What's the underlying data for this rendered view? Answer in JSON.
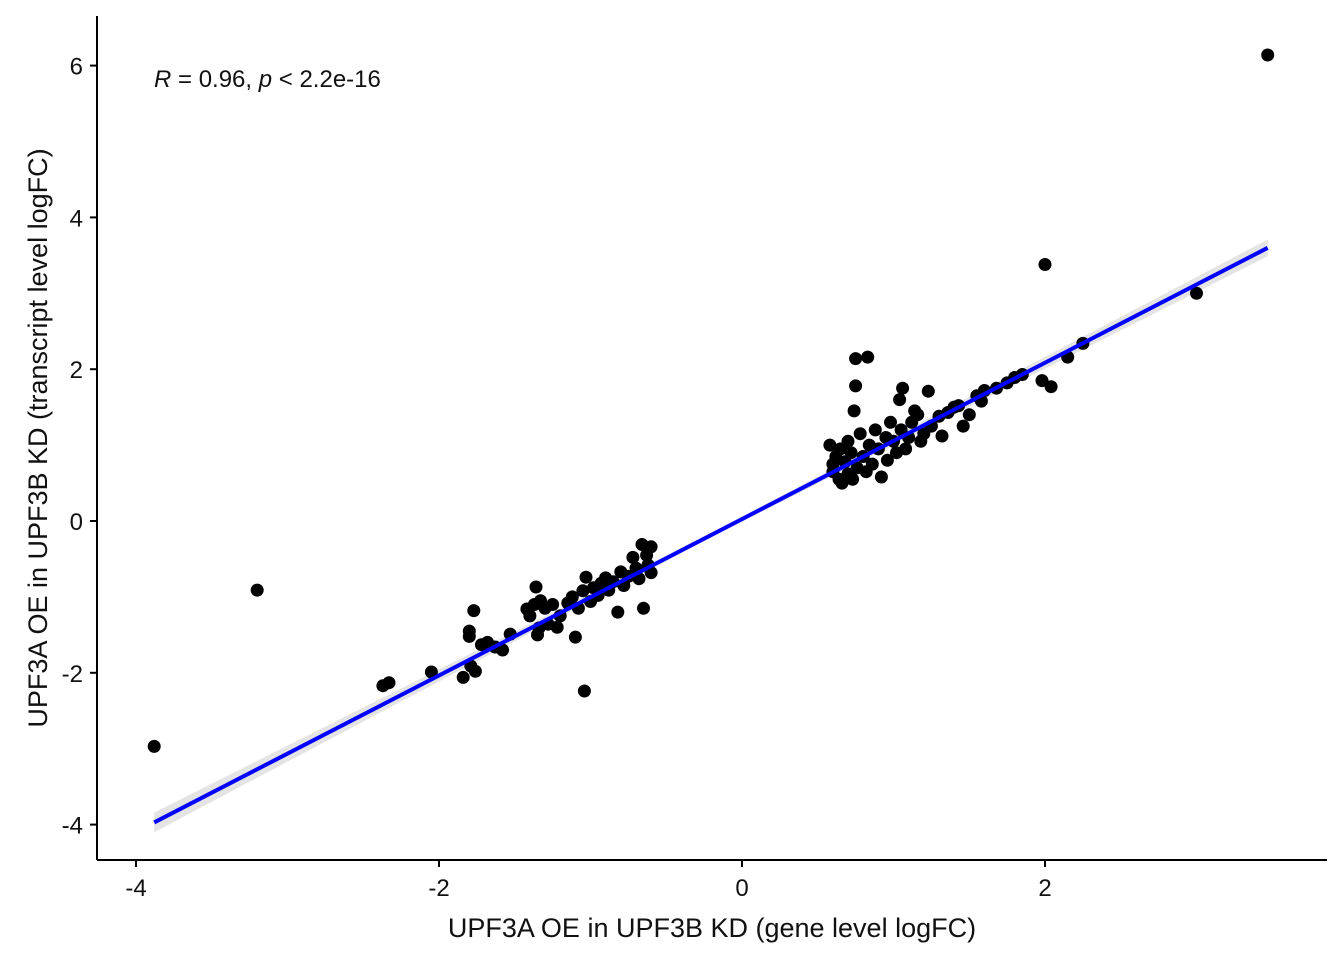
{
  "chart_data": {
    "type": "scatter",
    "title": "",
    "xlabel": "UPF3A OE in UPF3B KD (gene level logFC)",
    "ylabel": "UPF3A OE in UPF3B KD (transcript level logFC)",
    "xlim": [
      -4.15,
      3.85
    ],
    "ylim": [
      -4.5,
      6.65
    ],
    "x_ticks": [
      -4,
      -2,
      0,
      2
    ],
    "x_tick_labels": [
      "-4",
      "-2",
      "0",
      "2"
    ],
    "y_ticks": [
      -4,
      -2,
      0,
      2,
      4,
      6
    ],
    "y_tick_labels": [
      "-4",
      "-2",
      "0",
      "2",
      "4",
      "6"
    ],
    "grid": false,
    "annotation": {
      "r_symbol": "R",
      "r_text": " = 0.96, ",
      "p_symbol": "p",
      "p_text": " < 2.2e-16"
    },
    "point_color": "#000000",
    "regression": {
      "color": "#0000ff",
      "ci_color": "#d9d9d9",
      "x_range": [
        -3.88,
        3.47
      ],
      "intercept": 0.025,
      "slope": 1.03
    },
    "points": [
      [
        -3.88,
        -2.97
      ],
      [
        -3.2,
        -0.91
      ],
      [
        -2.37,
        -2.17
      ],
      [
        -2.33,
        -2.13
      ],
      [
        -2.05,
        -1.99
      ],
      [
        -1.84,
        -2.06
      ],
      [
        -1.79,
        -1.91
      ],
      [
        -1.77,
        -1.18
      ],
      [
        -1.8,
        -1.45
      ],
      [
        -1.8,
        -1.52
      ],
      [
        -1.76,
        -1.98
      ],
      [
        -1.72,
        -1.63
      ],
      [
        -1.68,
        -1.6
      ],
      [
        -1.63,
        -1.66
      ],
      [
        -1.58,
        -1.7
      ],
      [
        -1.53,
        -1.49
      ],
      [
        -1.42,
        -1.16
      ],
      [
        -1.4,
        -1.25
      ],
      [
        -1.37,
        -1.1
      ],
      [
        -1.36,
        -0.87
      ],
      [
        -1.34,
        -1.41
      ],
      [
        -1.35,
        -1.5
      ],
      [
        -1.33,
        -1.05
      ],
      [
        -1.3,
        -1.15
      ],
      [
        -1.28,
        -1.36
      ],
      [
        -1.25,
        -1.1
      ],
      [
        -1.22,
        -1.4
      ],
      [
        -1.2,
        -1.25
      ],
      [
        -1.15,
        -1.08
      ],
      [
        -1.12,
        -1.0
      ],
      [
        -1.1,
        -1.53
      ],
      [
        -1.08,
        -1.15
      ],
      [
        -1.05,
        -0.92
      ],
      [
        -1.03,
        -0.74
      ],
      [
        -1.0,
        -1.06
      ],
      [
        -1.04,
        -2.24
      ],
      [
        -0.98,
        -0.88
      ],
      [
        -0.95,
        -0.98
      ],
      [
        -0.93,
        -0.82
      ],
      [
        -0.9,
        -0.75
      ],
      [
        -0.88,
        -0.91
      ],
      [
        -0.85,
        -0.8
      ],
      [
        -0.82,
        -1.2
      ],
      [
        -0.8,
        -0.67
      ],
      [
        -0.78,
        -0.85
      ],
      [
        -0.75,
        -0.73
      ],
      [
        -0.72,
        -0.48
      ],
      [
        -0.7,
        -0.62
      ],
      [
        -0.68,
        -0.76
      ],
      [
        -0.66,
        -0.31
      ],
      [
        -0.65,
        -1.15
      ],
      [
        -0.63,
        -0.45
      ],
      [
        -0.62,
        -0.58
      ],
      [
        -0.6,
        -0.34
      ],
      [
        -0.6,
        -0.68
      ],
      [
        0.58,
        1.0
      ],
      [
        0.6,
        0.65
      ],
      [
        0.6,
        0.75
      ],
      [
        0.62,
        0.85
      ],
      [
        0.64,
        0.55
      ],
      [
        0.65,
        0.95
      ],
      [
        0.66,
        0.5
      ],
      [
        0.68,
        0.78
      ],
      [
        0.7,
        1.05
      ],
      [
        0.7,
        0.62
      ],
      [
        0.72,
        0.9
      ],
      [
        0.73,
        0.55
      ],
      [
        0.74,
        1.45
      ],
      [
        0.75,
        1.78
      ],
      [
        0.75,
        2.14
      ],
      [
        0.76,
        0.7
      ],
      [
        0.78,
        1.15
      ],
      [
        0.8,
        0.85
      ],
      [
        0.82,
        0.65
      ],
      [
        0.83,
        2.16
      ],
      [
        0.84,
        1.0
      ],
      [
        0.86,
        0.75
      ],
      [
        0.88,
        1.2
      ],
      [
        0.9,
        0.95
      ],
      [
        0.92,
        0.58
      ],
      [
        0.95,
        1.1
      ],
      [
        0.96,
        0.8
      ],
      [
        0.98,
        1.3
      ],
      [
        1.0,
        1.05
      ],
      [
        1.02,
        0.9
      ],
      [
        1.04,
        1.6
      ],
      [
        1.05,
        1.2
      ],
      [
        1.06,
        1.75
      ],
      [
        1.08,
        0.95
      ],
      [
        1.1,
        1.1
      ],
      [
        1.12,
        1.3
      ],
      [
        1.14,
        1.45
      ],
      [
        1.16,
        1.4
      ],
      [
        1.18,
        1.05
      ],
      [
        1.2,
        1.15
      ],
      [
        1.23,
        1.71
      ],
      [
        1.25,
        1.25
      ],
      [
        1.3,
        1.38
      ],
      [
        1.32,
        1.12
      ],
      [
        1.36,
        1.43
      ],
      [
        1.4,
        1.5
      ],
      [
        1.43,
        1.52
      ],
      [
        1.46,
        1.25
      ],
      [
        1.5,
        1.4
      ],
      [
        1.55,
        1.65
      ],
      [
        1.58,
        1.58
      ],
      [
        1.6,
        1.72
      ],
      [
        1.68,
        1.75
      ],
      [
        1.75,
        1.82
      ],
      [
        1.8,
        1.89
      ],
      [
        1.85,
        1.93
      ],
      [
        1.98,
        1.85
      ],
      [
        2.0,
        3.38
      ],
      [
        2.04,
        1.77
      ],
      [
        2.15,
        2.16
      ],
      [
        2.25,
        2.34
      ],
      [
        3.0,
        3.0
      ],
      [
        3.47,
        6.14
      ]
    ]
  }
}
